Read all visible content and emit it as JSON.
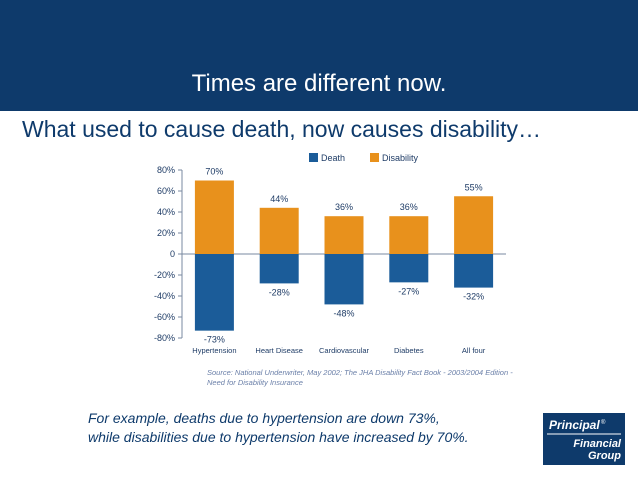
{
  "slide": {
    "title": "Times are different now.",
    "subtitle": "What used to cause death, now causes disability…",
    "caption_line1": "For example, deaths due to hypertension are down 73%,",
    "caption_line2": "while disabilities due to hypertension have increased by 70%.",
    "source_line1": "Source: National Underwriter, May 2002; The JHA Disability Fact Book - 2003/2004 Edition -",
    "source_line2": "Need for Disability Insurance"
  },
  "logo": {
    "name_line1": "Principal",
    "name_line2": "Financial",
    "name_line3": "Group",
    "registered_mark": "®"
  },
  "colors": {
    "header_bg": "#0e3a6b",
    "death": "#1b5c99",
    "disability": "#e8911c",
    "text_blue": "#0e3a6b"
  },
  "chart_data": {
    "type": "bar",
    "categories": [
      "Hypertension",
      "Heart Disease",
      "Cardiovascular",
      "Diabetes",
      "All four"
    ],
    "series": [
      {
        "name": "Death",
        "values": [
          -73,
          -28,
          -48,
          -27,
          -32
        ],
        "labels": [
          "-73%",
          "-28%",
          "-48%",
          "-27%",
          "-32%"
        ]
      },
      {
        "name": "Disability",
        "values": [
          70,
          44,
          36,
          36,
          55
        ],
        "labels": [
          "70%",
          "44%",
          "36%",
          "36%",
          "55%"
        ]
      }
    ],
    "ylim": [
      -80,
      80
    ],
    "yticks": [
      80,
      60,
      40,
      20,
      0,
      -20,
      -40,
      -60,
      -80
    ],
    "ytick_labels": [
      "80%",
      "60%",
      "40%",
      "20%",
      "0",
      "-20%",
      "-40%",
      "-60%",
      "-80%"
    ],
    "legend_position": "top",
    "grid": false
  }
}
